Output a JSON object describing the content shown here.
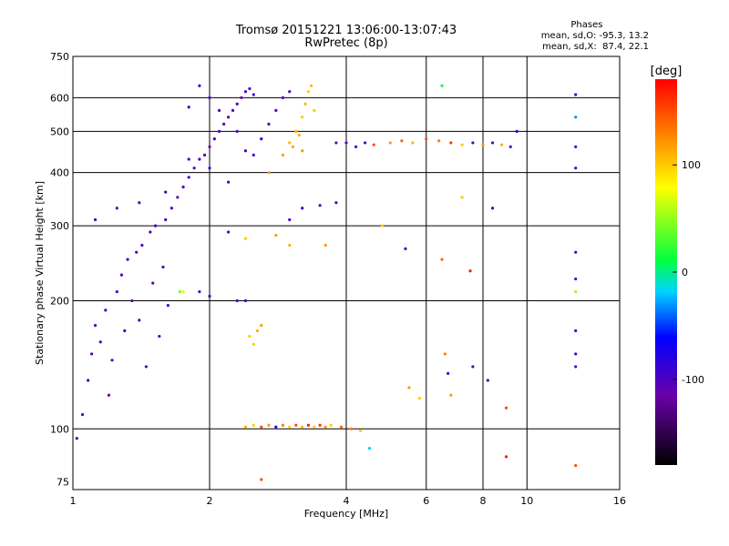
{
  "chart_data": {
    "type": "scatter",
    "title": "Tromsø 20151221 13:06:00-13:07:43",
    "subtitle": "RwPretec (8p)",
    "xlabel": "Frequency [MHz]",
    "ylabel": "Stationary phase Virtual Height [km]",
    "x_scale": "log",
    "y_scale": "log",
    "xlim": [
      1,
      16
    ],
    "ylim": [
      72,
      750
    ],
    "x_ticks": [
      1,
      2,
      4,
      6,
      8,
      10,
      16
    ],
    "y_ticks": [
      75,
      100,
      200,
      300,
      400,
      500,
      600,
      750
    ],
    "grid": true,
    "colorbar": {
      "label": "[deg]",
      "range": [
        -180,
        180
      ],
      "ticks": [
        100,
        0,
        -100
      ]
    },
    "legend": {
      "title": "Phases",
      "line1": "mean, sd,O: -95.3, 13.2",
      "line2": "mean, sd,X:  87.4, 22.1"
    },
    "series": [
      {
        "points": [
          [
            1.02,
            95,
            -100
          ],
          [
            1.05,
            108,
            -110
          ],
          [
            1.08,
            130,
            -95
          ],
          [
            1.1,
            150,
            -100
          ],
          [
            1.12,
            175,
            -105
          ],
          [
            1.15,
            160,
            -90
          ],
          [
            1.18,
            190,
            -100
          ],
          [
            1.2,
            120,
            -110
          ],
          [
            1.22,
            145,
            -95
          ],
          [
            1.25,
            210,
            -100
          ],
          [
            1.28,
            230,
            -105
          ],
          [
            1.3,
            170,
            -95
          ],
          [
            1.32,
            250,
            -100
          ],
          [
            1.35,
            200,
            -110
          ],
          [
            1.38,
            260,
            -100
          ],
          [
            1.4,
            180,
            -95
          ],
          [
            1.42,
            270,
            -105
          ],
          [
            1.45,
            140,
            -100
          ],
          [
            1.48,
            290,
            -100
          ],
          [
            1.5,
            220,
            -110
          ],
          [
            1.52,
            300,
            -95
          ],
          [
            1.55,
            165,
            -100
          ],
          [
            1.58,
            240,
            -105
          ],
          [
            1.6,
            310,
            -100
          ],
          [
            1.62,
            195,
            -95
          ],
          [
            1.65,
            330,
            -100
          ],
          [
            1.7,
            350,
            -110
          ],
          [
            1.72,
            210,
            40
          ],
          [
            1.75,
            370,
            -100
          ],
          [
            1.8,
            390,
            -95
          ],
          [
            1.85,
            410,
            -105
          ],
          [
            1.9,
            430,
            -100
          ],
          [
            1.95,
            440,
            -100
          ],
          [
            2.0,
            460,
            -110
          ],
          [
            2.05,
            480,
            -95
          ],
          [
            2.1,
            500,
            -100
          ],
          [
            2.15,
            520,
            -105
          ],
          [
            2.2,
            540,
            -100
          ],
          [
            2.25,
            560,
            -95
          ],
          [
            2.3,
            580,
            -100
          ],
          [
            2.35,
            600,
            -110
          ],
          [
            2.4,
            620,
            -100
          ],
          [
            2.45,
            630,
            -95
          ],
          [
            2.5,
            610,
            -100
          ],
          [
            1.12,
            310,
            -100
          ],
          [
            1.25,
            330,
            -105
          ],
          [
            1.4,
            340,
            -100
          ],
          [
            1.6,
            360,
            -100
          ],
          [
            1.8,
            430,
            -95
          ],
          [
            2.0,
            410,
            -100
          ],
          [
            2.2,
            380,
            -105
          ],
          [
            2.4,
            450,
            -100
          ],
          [
            2.6,
            480,
            -60
          ],
          [
            2.7,
            520,
            -100
          ],
          [
            2.8,
            560,
            -100
          ],
          [
            2.9,
            600,
            -100
          ],
          [
            3.0,
            620,
            -100
          ],
          [
            1.8,
            570,
            -100
          ],
          [
            2.0,
            600,
            -100
          ],
          [
            1.9,
            640,
            -100
          ],
          [
            2.1,
            560,
            -100
          ],
          [
            2.3,
            500,
            -100
          ],
          [
            2.5,
            440,
            -100
          ],
          [
            2.7,
            400,
            120
          ],
          [
            2.9,
            440,
            120
          ],
          [
            3.0,
            470,
            110
          ],
          [
            3.1,
            500,
            110
          ],
          [
            3.2,
            540,
            100
          ],
          [
            3.25,
            580,
            110
          ],
          [
            3.3,
            620,
            100
          ],
          [
            3.05,
            460,
            115
          ],
          [
            3.15,
            490,
            110
          ],
          [
            3.35,
            640,
            105
          ],
          [
            3.4,
            560,
            100
          ],
          [
            3.2,
            450,
            120
          ],
          [
            3.8,
            470,
            -110
          ],
          [
            4.0,
            470,
            -100
          ],
          [
            4.2,
            460,
            -95
          ],
          [
            4.4,
            470,
            -100
          ],
          [
            4.6,
            465,
            150
          ],
          [
            5.0,
            470,
            120
          ],
          [
            5.3,
            475,
            140
          ],
          [
            5.6,
            470,
            110
          ],
          [
            6.0,
            480,
            150
          ],
          [
            6.4,
            475,
            130
          ],
          [
            6.8,
            470,
            160
          ],
          [
            7.2,
            465,
            100
          ],
          [
            7.6,
            470,
            -100
          ],
          [
            8.0,
            465,
            120
          ],
          [
            8.4,
            470,
            -100
          ],
          [
            8.8,
            465,
            110
          ],
          [
            9.2,
            460,
            -100
          ],
          [
            6.5,
            640,
            10
          ],
          [
            9.5,
            500,
            -80
          ],
          [
            12.8,
            610,
            -100
          ],
          [
            12.8,
            540,
            -30
          ],
          [
            12.8,
            460,
            -100
          ],
          [
            12.8,
            410,
            -100
          ],
          [
            12.8,
            260,
            -100
          ],
          [
            12.8,
            225,
            -100
          ],
          [
            12.8,
            210,
            50
          ],
          [
            12.8,
            170,
            -100
          ],
          [
            12.8,
            150,
            -100
          ],
          [
            12.8,
            140,
            -100
          ],
          [
            12.8,
            82,
            150
          ],
          [
            2.2,
            290,
            -100
          ],
          [
            2.4,
            280,
            100
          ],
          [
            2.8,
            285,
            120
          ],
          [
            3.0,
            270,
            110
          ],
          [
            3.2,
            330,
            -90
          ],
          [
            3.5,
            335,
            -100
          ],
          [
            3.8,
            340,
            -100
          ],
          [
            3.0,
            310,
            -100
          ],
          [
            3.6,
            270,
            120
          ],
          [
            4.8,
            300,
            100
          ],
          [
            5.4,
            265,
            -100
          ],
          [
            6.5,
            250,
            140
          ],
          [
            7.5,
            235,
            170
          ],
          [
            7.2,
            350,
            100
          ],
          [
            8.4,
            330,
            -100
          ],
          [
            2.45,
            165,
            100
          ],
          [
            2.55,
            170,
            110
          ],
          [
            2.5,
            158,
            100
          ],
          [
            2.6,
            175,
            120
          ],
          [
            2.4,
            200,
            -100
          ],
          [
            2.3,
            200,
            -100
          ],
          [
            1.75,
            210,
            70
          ],
          [
            1.9,
            210,
            -100
          ],
          [
            2.0,
            205,
            -100
          ],
          [
            5.5,
            125,
            120
          ],
          [
            5.8,
            118,
            100
          ],
          [
            6.6,
            150,
            130
          ],
          [
            6.7,
            135,
            -100
          ],
          [
            6.8,
            120,
            120
          ],
          [
            7.6,
            140,
            -100
          ],
          [
            8.2,
            130,
            -100
          ],
          [
            9.0,
            112,
            150
          ],
          [
            9.0,
            86,
            170
          ],
          [
            2.4,
            101,
            110
          ],
          [
            2.5,
            102,
            100
          ],
          [
            2.6,
            101,
            150
          ],
          [
            2.7,
            102,
            120
          ],
          [
            2.8,
            101,
            -80
          ],
          [
            2.9,
            102,
            130
          ],
          [
            3.0,
            101,
            100
          ],
          [
            3.1,
            102,
            150
          ],
          [
            3.2,
            101,
            110
          ],
          [
            3.3,
            102,
            170
          ],
          [
            3.4,
            101,
            100
          ],
          [
            3.5,
            102,
            160
          ],
          [
            3.6,
            101,
            120
          ],
          [
            3.7,
            102,
            100
          ],
          [
            3.9,
            101,
            140
          ],
          [
            4.1,
            100,
            130
          ],
          [
            4.3,
            99,
            100
          ],
          [
            4.5,
            90,
            -20
          ],
          [
            2.6,
            76,
            150
          ]
        ]
      }
    ]
  }
}
